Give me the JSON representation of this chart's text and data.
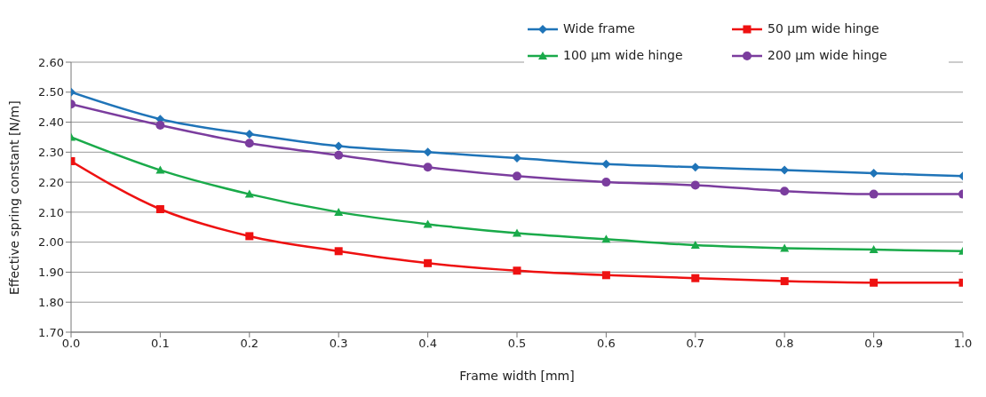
{
  "chart_data": {
    "type": "line",
    "xlabel": "Frame width [mm]",
    "ylabel": "Effective spring constant [N/m]",
    "x": [
      0,
      0.1,
      0.2,
      0.3,
      0.4,
      0.5,
      0.6,
      0.7,
      0.8,
      0.9,
      1.0
    ],
    "series": [
      {
        "name": "Wide frame",
        "color": "#1f74b8",
        "marker": "diamond",
        "values": [
          2.5,
          2.41,
          2.36,
          2.32,
          2.3,
          2.28,
          2.26,
          2.25,
          2.24,
          2.23,
          2.22
        ]
      },
      {
        "name": "50 µm wide hinge",
        "color": "#ee1111",
        "marker": "square",
        "values": [
          2.27,
          2.11,
          2.02,
          1.97,
          1.93,
          1.905,
          1.89,
          1.88,
          1.87,
          1.865,
          1.865
        ]
      },
      {
        "name": "100 µm wide hinge",
        "color": "#1aaa4a",
        "marker": "triangle",
        "values": [
          2.35,
          2.24,
          2.16,
          2.1,
          2.06,
          2.03,
          2.01,
          1.99,
          1.98,
          1.975,
          1.97
        ]
      },
      {
        "name": "200 µm wide hinge",
        "color": "#7b3d9e",
        "marker": "circle",
        "values": [
          2.46,
          2.39,
          2.33,
          2.29,
          2.25,
          2.22,
          2.2,
          2.19,
          2.17,
          2.16,
          2.16
        ]
      }
    ],
    "xlim": [
      0,
      1
    ],
    "xticks": [
      {
        "value": 0,
        "label": "0.0"
      },
      {
        "value": 0.1,
        "label": "0.1"
      },
      {
        "value": 0.2,
        "label": "0.2"
      },
      {
        "value": 0.3,
        "label": "0.3"
      },
      {
        "value": 0.4,
        "label": "0.4"
      },
      {
        "value": 0.5,
        "label": "0.5"
      },
      {
        "value": 0.6,
        "label": "0.6"
      },
      {
        "value": 0.7,
        "label": "0.7"
      },
      {
        "value": 0.8,
        "label": "0.8"
      },
      {
        "value": 0.9,
        "label": "0.9"
      },
      {
        "value": 1,
        "label": "1.0"
      }
    ],
    "ylim": [
      1.7,
      2.6
    ],
    "yticks": [
      {
        "value": 1.7,
        "label": "1.70"
      },
      {
        "value": 1.8,
        "label": "1.80"
      },
      {
        "value": 1.9,
        "label": "1.90"
      },
      {
        "value": 2.0,
        "label": "2.00"
      },
      {
        "value": 2.1,
        "label": "2.10"
      },
      {
        "value": 2.2,
        "label": "2.20"
      },
      {
        "value": 2.3,
        "label": "2.30"
      },
      {
        "value": 2.4,
        "label": "2.40"
      },
      {
        "value": 2.5,
        "label": "2.50"
      },
      {
        "value": 2.6,
        "label": "2.60"
      }
    ],
    "grid": "y",
    "legend": "top right",
    "line_style": "solid"
  }
}
